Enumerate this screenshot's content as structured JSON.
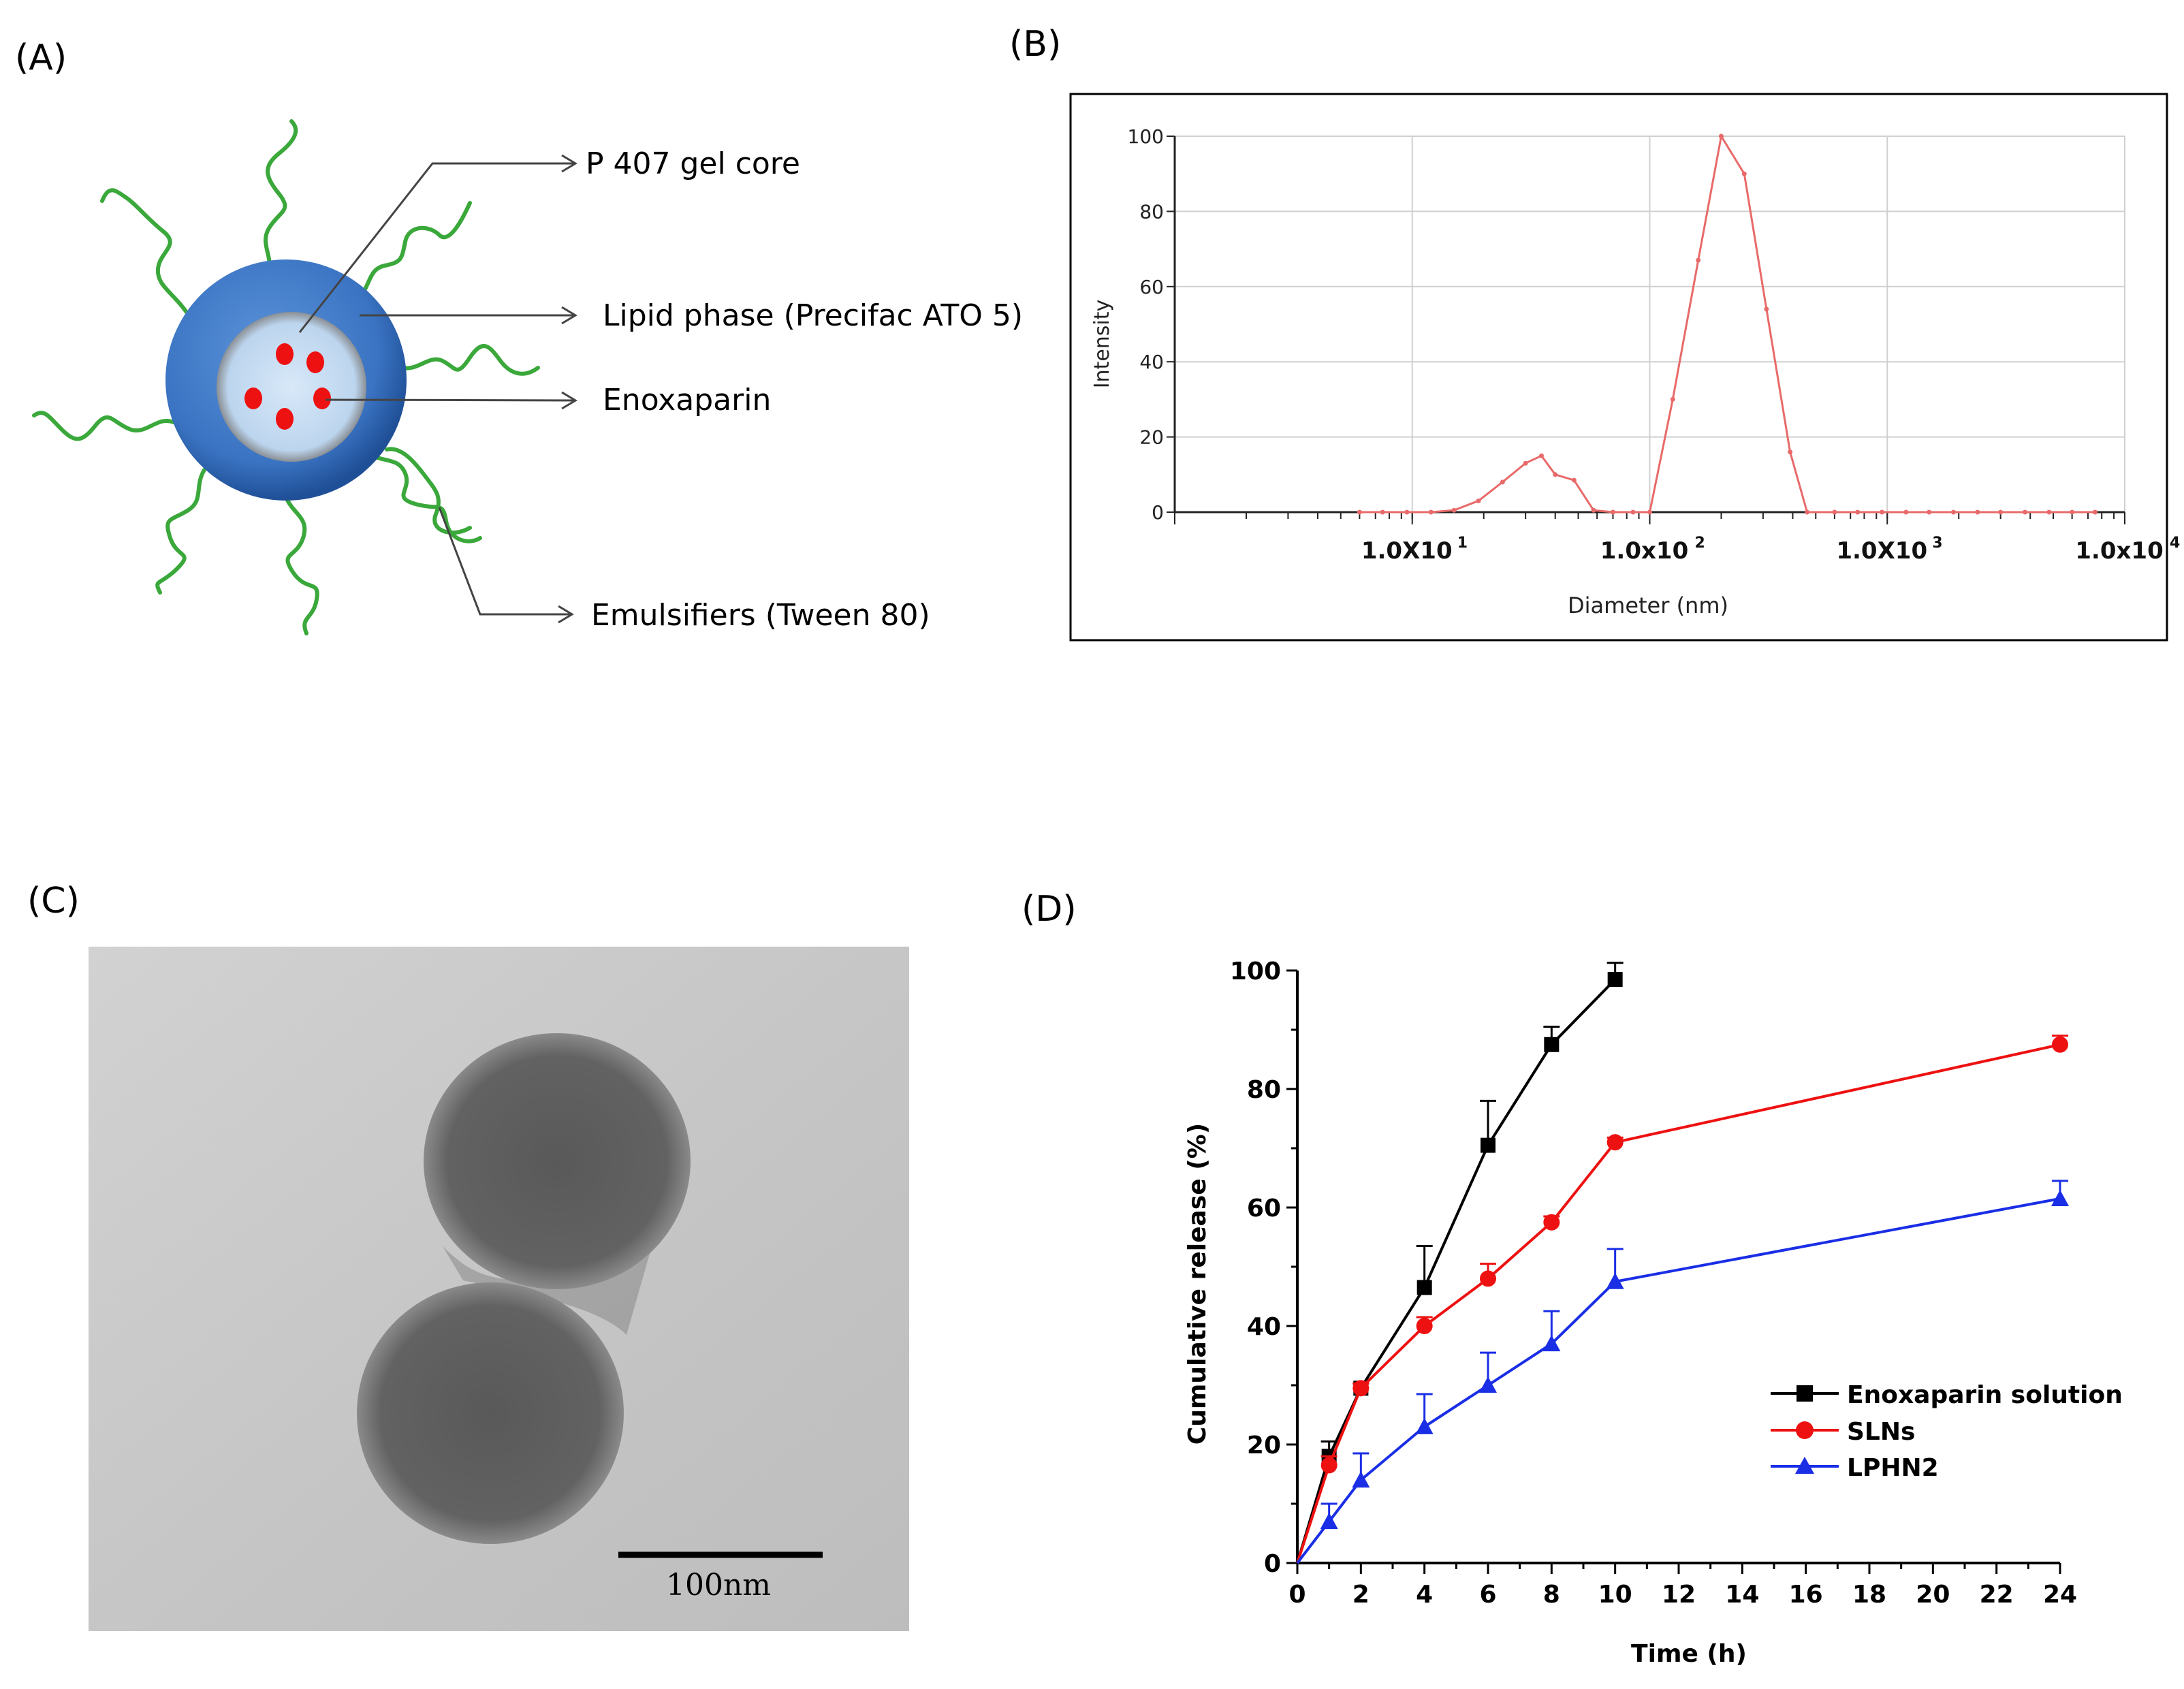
{
  "panels": {
    "a": {
      "letter": "(A)",
      "labels": [
        "P 407 gel core",
        "Lipid phase (Precifac ATO 5)",
        "Enoxaparin",
        "Emulsifiers (Tween 80)"
      ]
    },
    "b": {
      "letter": "(B)"
    },
    "c": {
      "letter": "(C)",
      "scale_bar": "100nm"
    },
    "d": {
      "letter": "(D)"
    }
  },
  "colors": {
    "shell": "#3a73c2",
    "core": "#c6dcf2",
    "drug": "#ee1111",
    "chains": "#3aa83a",
    "size_curve": "#e86a6a",
    "solution": "#000000",
    "sln": "#ee1111",
    "lphn": "#1a2ee6"
  },
  "chart_data": [
    {
      "id": "size-distribution",
      "type": "line",
      "title": "",
      "xlabel": "Diameter (nm)",
      "ylabel": "Intensity",
      "xscale": "log",
      "xlim": [
        1,
        10000
      ],
      "ylim": [
        0,
        100
      ],
      "yticks": [
        0,
        20,
        40,
        60,
        80,
        100
      ],
      "xtick_labels": [
        {
          "value": 10,
          "label": "1.0X10",
          "sup": "1"
        },
        {
          "value": 100,
          "label": "1.0x10",
          "sup": "2"
        },
        {
          "value": 1000,
          "label": "1.0X10",
          "sup": "3"
        },
        {
          "value": 10000,
          "label": "1.0x10",
          "sup": "4"
        }
      ],
      "grid": true,
      "series": [
        {
          "name": "Intensity",
          "x": [
            6,
            7.5,
            9.5,
            12,
            15,
            19,
            24,
            30,
            35,
            40,
            48,
            58,
            70,
            85,
            100,
            125,
            160,
            200,
            250,
            310,
            390,
            460,
            600,
            750,
            950,
            1200,
            1500,
            1900,
            2400,
            3000,
            3800,
            4800,
            6000,
            7500
          ],
          "y": [
            0,
            0,
            0,
            0,
            0.5,
            3,
            8,
            13,
            15,
            10,
            8.5,
            0.5,
            0,
            0,
            0,
            30,
            67,
            100,
            90,
            54,
            16,
            0,
            0,
            0,
            0,
            0,
            0,
            0,
            0,
            0,
            0,
            0,
            0,
            0
          ]
        }
      ]
    },
    {
      "id": "release-profile",
      "type": "line",
      "title": "",
      "xlabel": "Time (h)",
      "ylabel": "Cumulative release (%)",
      "xlim": [
        0,
        24
      ],
      "ylim": [
        0,
        100
      ],
      "xticks": [
        0,
        2,
        4,
        6,
        8,
        10,
        12,
        14,
        16,
        18,
        20,
        22,
        24
      ],
      "yticks": [
        0,
        20,
        40,
        60,
        80,
        100
      ],
      "legend_position": "bottom-right",
      "series": [
        {
          "name": "Enoxaparin solution",
          "marker": "square",
          "x": [
            0,
            1,
            2,
            4,
            6,
            8,
            10
          ],
          "y": [
            0,
            18,
            29.5,
            46.5,
            70.5,
            87.5,
            98.5
          ],
          "err": [
            0,
            2.5,
            0.8,
            7,
            7.5,
            3,
            2.8
          ]
        },
        {
          "name": "SLNs",
          "marker": "circle",
          "x": [
            0,
            1,
            2,
            4,
            6,
            8,
            10,
            24
          ],
          "y": [
            0,
            16.5,
            29.5,
            40,
            48,
            57.5,
            71,
            87.5
          ],
          "err": [
            0,
            1.5,
            0.8,
            1.5,
            2.5,
            1,
            0.8,
            1.5
          ]
        },
        {
          "name": "LPHN2",
          "marker": "triangle",
          "x": [
            0,
            1,
            2,
            4,
            6,
            8,
            10,
            24
          ],
          "y": [
            0,
            7,
            14,
            23,
            30,
            37,
            47.5,
            61.5
          ],
          "err": [
            0,
            3,
            4.5,
            5.5,
            5.5,
            5.5,
            5.5,
            3
          ]
        }
      ]
    }
  ]
}
